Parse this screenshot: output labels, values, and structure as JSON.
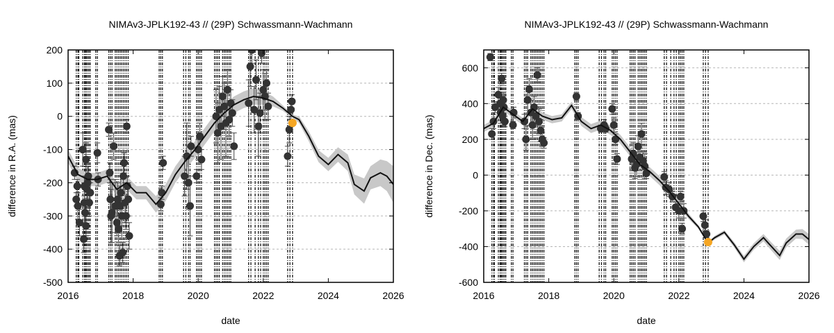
{
  "chart_data": [
    {
      "type": "scatter",
      "title": "NIMAv3-JPLK192-43 // (29P) Schwassmann-Wachmann",
      "xlabel": "date",
      "ylabel": "difference in R.A. (mas)",
      "xlim": [
        2016,
        2026
      ],
      "ylim": [
        -500,
        200
      ],
      "xticks": [
        "2016",
        "2018",
        "2020",
        "2022",
        "2024",
        "2026"
      ],
      "yticks": [
        "-500",
        "-400",
        "-300",
        "-200",
        "-100",
        "0",
        "100",
        "200"
      ],
      "grid": "horizontal dashed",
      "highlight_color": "#f5a623",
      "observation_epochs": [
        2016.25,
        2016.3,
        2016.33,
        2016.45,
        2016.5,
        2016.53,
        2016.56,
        2016.6,
        2016.64,
        2016.68,
        2016.85,
        2016.9,
        2017.25,
        2017.3,
        2017.35,
        2017.45,
        2017.5,
        2017.55,
        2017.6,
        2017.65,
        2017.7,
        2017.75,
        2017.8,
        2017.85,
        2018.8,
        2018.85,
        2018.9,
        2019.55,
        2019.62,
        2019.7,
        2019.75,
        2019.95,
        2020.0,
        2020.05,
        2020.1,
        2020.5,
        2020.55,
        2020.6,
        2020.65,
        2020.75,
        2020.8,
        2020.85,
        2020.9,
        2020.95,
        2021.0,
        2021.55,
        2021.62,
        2021.75,
        2021.85,
        2021.92,
        2022.0,
        2022.05,
        2022.1,
        2022.15,
        2022.75,
        2022.82,
        2022.9
      ],
      "ephemeris": {
        "x": [
          2016.0,
          2016.3,
          2016.6,
          2016.9,
          2017.2,
          2017.5,
          2017.8,
          2018.1,
          2018.4,
          2018.7,
          2019.0,
          2019.3,
          2019.6,
          2019.9,
          2020.2,
          2020.5,
          2020.8,
          2021.1,
          2021.4,
          2021.7,
          2022.0,
          2022.3,
          2022.6,
          2022.9,
          2023.1,
          2023.4,
          2023.7,
          2024.0,
          2024.3,
          2024.6,
          2024.8,
          2025.1,
          2025.3,
          2025.6,
          2025.8,
          2026.0
        ],
        "y": [
          -120,
          -175,
          -190,
          -190,
          -180,
          -220,
          -200,
          -230,
          -230,
          -265,
          -230,
          -175,
          -135,
          -100,
          -60,
          -20,
          10,
          35,
          50,
          60,
          55,
          45,
          25,
          0,
          -10,
          -60,
          -120,
          -145,
          -115,
          -140,
          -205,
          -225,
          -185,
          -170,
          -180,
          -205
        ],
        "band": [
          20,
          20,
          20,
          20,
          20,
          20,
          20,
          20,
          20,
          25,
          25,
          25,
          25,
          25,
          25,
          25,
          25,
          25,
          25,
          25,
          20,
          15,
          8,
          5,
          10,
          15,
          18,
          20,
          22,
          25,
          30,
          38,
          35,
          40,
          45,
          55
        ]
      },
      "points": {
        "x": [
          2016.2,
          2016.25,
          2016.28,
          2016.3,
          2016.35,
          2016.45,
          2016.48,
          2016.5,
          2016.5,
          2016.52,
          2016.55,
          2016.55,
          2016.58,
          2016.6,
          2016.62,
          2016.65,
          2016.68,
          2016.9,
          2016.92,
          2017.25,
          2017.28,
          2017.3,
          2017.32,
          2017.35,
          2017.4,
          2017.45,
          2017.5,
          2017.52,
          2017.55,
          2017.58,
          2017.6,
          2017.62,
          2017.65,
          2017.68,
          2017.7,
          2017.72,
          2017.75,
          2017.78,
          2017.8,
          2017.82,
          2017.85,
          2017.88,
          2018.85,
          2018.88,
          2018.92,
          2019.58,
          2019.65,
          2019.7,
          2019.75,
          2019.78,
          2019.95,
          2020.0,
          2020.05,
          2020.1,
          2020.55,
          2020.6,
          2020.65,
          2020.7,
          2020.75,
          2020.8,
          2020.85,
          2020.9,
          2020.95,
          2021.0,
          2021.05,
          2021.1,
          2021.55,
          2021.6,
          2021.65,
          2021.72,
          2021.78,
          2021.85,
          2021.9,
          2021.95,
          2022.0,
          2022.05,
          2022.1,
          2022.15,
          2022.75,
          2022.8,
          2022.85,
          2022.88
        ],
        "y": [
          -170,
          -250,
          -210,
          -270,
          -320,
          -100,
          -370,
          -210,
          -260,
          -290,
          -130,
          -330,
          -220,
          -200,
          -180,
          -260,
          -230,
          -110,
          -190,
          -40,
          -170,
          -250,
          -300,
          -290,
          -90,
          -270,
          -320,
          -250,
          -340,
          -420,
          -270,
          -230,
          -300,
          -410,
          -180,
          -140,
          -260,
          -300,
          -30,
          -210,
          -250,
          -360,
          -265,
          -230,
          -140,
          -180,
          -120,
          -200,
          -270,
          -90,
          -180,
          -100,
          -60,
          -130,
          0,
          -50,
          20,
          -30,
          60,
          30,
          -20,
          80,
          -10,
          40,
          10,
          -90,
          40,
          150,
          200,
          20,
          110,
          -30,
          10,
          190,
          80,
          60,
          100,
          30,
          -120,
          -40,
          20,
          45
        ],
        "err": [
          20,
          20,
          20,
          40,
          40,
          50,
          40,
          30,
          60,
          40,
          50,
          30,
          30,
          50,
          30,
          40,
          30,
          30,
          20,
          20,
          30,
          60,
          80,
          90,
          40,
          80,
          40,
          50,
          40,
          30,
          60,
          50,
          70,
          30,
          40,
          30,
          60,
          40,
          20,
          30,
          50,
          40,
          20,
          20,
          20,
          60,
          100,
          80,
          90,
          30,
          20,
          30,
          40,
          30,
          80,
          90,
          70,
          100,
          60,
          70,
          100,
          60,
          50,
          40,
          40,
          40,
          70,
          60,
          40,
          70,
          60,
          90,
          60,
          30,
          60,
          70,
          40,
          40,
          30,
          40,
          30,
          20
        ]
      },
      "highlight_point": {
        "x": 2022.9,
        "y": -20
      }
    },
    {
      "type": "scatter",
      "title": "NIMAv3-JPLK192-43 // (29P) Schwassmann-Wachmann",
      "xlabel": "date",
      "ylabel": "difference in Dec. (mas)",
      "xlim": [
        2016,
        2026
      ],
      "ylim": [
        -600,
        700
      ],
      "xticks": [
        "2016",
        "2018",
        "2020",
        "2022",
        "2024",
        "2026"
      ],
      "yticks": [
        "-600",
        "-400",
        "-200",
        "0",
        "200",
        "400",
        "600"
      ],
      "grid": "horizontal dashed",
      "highlight_color": "#f5a623",
      "observation_epochs": [
        2016.25,
        2016.3,
        2016.33,
        2016.45,
        2016.5,
        2016.53,
        2016.56,
        2016.6,
        2016.64,
        2016.68,
        2016.85,
        2016.9,
        2017.25,
        2017.3,
        2017.35,
        2017.45,
        2017.5,
        2017.55,
        2017.6,
        2017.65,
        2017.7,
        2017.75,
        2017.8,
        2017.85,
        2018.8,
        2018.85,
        2018.9,
        2019.55,
        2019.62,
        2019.7,
        2019.75,
        2019.95,
        2020.0,
        2020.05,
        2020.1,
        2020.5,
        2020.55,
        2020.6,
        2020.65,
        2020.75,
        2020.8,
        2020.85,
        2020.9,
        2020.95,
        2021.0,
        2021.55,
        2021.62,
        2021.75,
        2021.85,
        2021.92,
        2022.0,
        2022.05,
        2022.1,
        2022.15,
        2022.75,
        2022.82,
        2022.9
      ],
      "ephemeris": {
        "x": [
          2016.0,
          2016.3,
          2016.6,
          2016.9,
          2017.2,
          2017.5,
          2017.8,
          2018.1,
          2018.4,
          2018.7,
          2019.0,
          2019.3,
          2019.6,
          2019.9,
          2020.2,
          2020.5,
          2020.8,
          2021.1,
          2021.4,
          2021.7,
          2022.0,
          2022.3,
          2022.6,
          2022.9,
          2023.1,
          2023.4,
          2023.7,
          2024.0,
          2024.3,
          2024.6,
          2024.8,
          2025.1,
          2025.3,
          2025.6,
          2025.8,
          2026.0
        ],
        "y": [
          260,
          290,
          380,
          340,
          300,
          370,
          330,
          310,
          320,
          390,
          300,
          260,
          280,
          250,
          200,
          130,
          60,
          20,
          -30,
          -90,
          -160,
          -230,
          -290,
          -380,
          -350,
          -320,
          -390,
          -470,
          -400,
          -350,
          -390,
          -450,
          -380,
          -330,
          -330,
          -360
        ],
        "band": [
          20,
          20,
          20,
          20,
          20,
          20,
          20,
          20,
          20,
          20,
          25,
          25,
          25,
          25,
          25,
          25,
          25,
          25,
          25,
          25,
          20,
          15,
          10,
          8,
          10,
          12,
          15,
          18,
          18,
          20,
          22,
          25,
          25,
          25,
          28,
          30
        ]
      },
      "points": {
        "x": [
          2016.2,
          2016.25,
          2016.3,
          2016.35,
          2016.45,
          2016.5,
          2016.52,
          2016.55,
          2016.58,
          2016.6,
          2016.62,
          2016.65,
          2016.9,
          2016.92,
          2017.25,
          2017.3,
          2017.35,
          2017.4,
          2017.45,
          2017.5,
          2017.55,
          2017.6,
          2017.65,
          2017.7,
          2017.75,
          2017.8,
          2017.85,
          2018.85,
          2018.9,
          2019.6,
          2019.7,
          2019.75,
          2019.95,
          2020.0,
          2020.05,
          2020.1,
          2020.55,
          2020.6,
          2020.65,
          2020.7,
          2020.75,
          2020.8,
          2020.85,
          2020.9,
          2020.95,
          2021.0,
          2021.55,
          2021.6,
          2021.7,
          2021.8,
          2021.9,
          2022.0,
          2022.05,
          2022.1,
          2022.15,
          2022.75,
          2022.8,
          2022.85
        ],
        "y": [
          660,
          230,
          300,
          380,
          450,
          400,
          350,
          540,
          330,
          420,
          380,
          300,
          280,
          350,
          300,
          200,
          420,
          480,
          350,
          280,
          380,
          330,
          560,
          300,
          250,
          200,
          180,
          440,
          330,
          260,
          280,
          260,
          370,
          280,
          200,
          90,
          90,
          120,
          40,
          60,
          160,
          100,
          230,
          80,
          50,
          10,
          -10,
          -70,
          -80,
          -120,
          -180,
          -200,
          -120,
          -300,
          -200,
          -230,
          -280,
          -330
        ],
        "err": [
          20,
          30,
          40,
          30,
          40,
          30,
          60,
          30,
          50,
          40,
          40,
          30,
          20,
          30,
          40,
          60,
          80,
          60,
          70,
          80,
          60,
          50,
          40,
          70,
          60,
          40,
          30,
          20,
          20,
          20,
          30,
          20,
          30,
          40,
          30,
          30,
          50,
          60,
          60,
          70,
          60,
          50,
          60,
          50,
          70,
          30,
          30,
          40,
          40,
          30,
          30,
          40,
          30,
          30,
          40,
          30,
          30,
          20
        ]
      },
      "highlight_point": {
        "x": 2022.9,
        "y": -375
      }
    }
  ]
}
